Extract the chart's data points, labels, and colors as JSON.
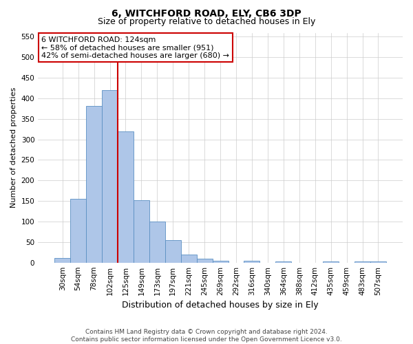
{
  "title": "6, WITCHFORD ROAD, ELY, CB6 3DP",
  "subtitle": "Size of property relative to detached houses in Ely",
  "xlabel": "Distribution of detached houses by size in Ely",
  "ylabel": "Number of detached properties",
  "categories": [
    "30sqm",
    "54sqm",
    "78sqm",
    "102sqm",
    "125sqm",
    "149sqm",
    "173sqm",
    "197sqm",
    "221sqm",
    "245sqm",
    "269sqm",
    "292sqm",
    "316sqm",
    "340sqm",
    "364sqm",
    "388sqm",
    "412sqm",
    "435sqm",
    "459sqm",
    "483sqm",
    "507sqm"
  ],
  "values": [
    12,
    155,
    381,
    420,
    320,
    152,
    100,
    55,
    20,
    10,
    5,
    0,
    5,
    0,
    3,
    0,
    0,
    3,
    0,
    3,
    3
  ],
  "bar_color": "#aec6e8",
  "bar_edge_color": "#5a8fc2",
  "vline_x_index": 4,
  "vline_color": "#cc0000",
  "annotation_text": "6 WITCHFORD ROAD: 124sqm\n← 58% of detached houses are smaller (951)\n42% of semi-detached houses are larger (680) →",
  "annotation_box_color": "#ffffff",
  "annotation_box_edge": "#cc0000",
  "ylim": [
    0,
    560
  ],
  "yticks": [
    0,
    50,
    100,
    150,
    200,
    250,
    300,
    350,
    400,
    450,
    500,
    550
  ],
  "footer": "Contains HM Land Registry data © Crown copyright and database right 2024.\nContains public sector information licensed under the Open Government Licence v3.0.",
  "background_color": "#ffffff",
  "grid_color": "#cccccc",
  "title_fontsize": 10,
  "subtitle_fontsize": 9,
  "ylabel_fontsize": 8,
  "xlabel_fontsize": 9,
  "tick_fontsize": 7.5,
  "footer_fontsize": 6.5
}
